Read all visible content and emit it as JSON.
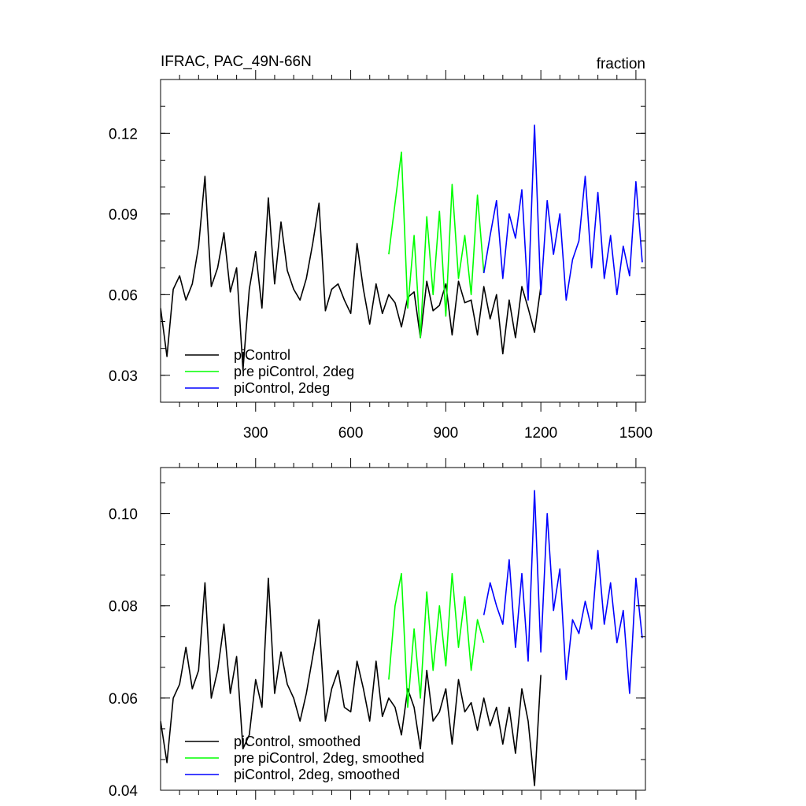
{
  "chart_data": [
    {
      "type": "line",
      "title": "IFRAC, PAC_49N-66N",
      "units_label": "fraction",
      "xlim": [
        0,
        1530
      ],
      "ylim": [
        0.02,
        0.14
      ],
      "x_ticks": [
        300,
        600,
        900,
        1200,
        1500
      ],
      "y_ticks": [
        0.03,
        0.06,
        0.09,
        0.12
      ],
      "x_tick_labels": [
        "300",
        "600",
        "900",
        "1200",
        "1500"
      ],
      "y_tick_labels": [
        "0.03",
        "0.06",
        "0.09",
        "0.12"
      ],
      "grid": false,
      "legend_position": "bottom-left",
      "series": [
        {
          "name": "piControl",
          "color": "#000000",
          "x": [
            0,
            20,
            40,
            60,
            80,
            100,
            120,
            140,
            160,
            180,
            200,
            220,
            240,
            260,
            280,
            300,
            320,
            340,
            360,
            380,
            400,
            420,
            440,
            460,
            480,
            500,
            520,
            540,
            560,
            580,
            600,
            620,
            640,
            660,
            680,
            700,
            720,
            740,
            760,
            780,
            800,
            820,
            840,
            860,
            880,
            900,
            920,
            940,
            960,
            980,
            1000,
            1020,
            1040,
            1060,
            1080,
            1100,
            1120,
            1140,
            1160,
            1180,
            1200
          ],
          "values": [
            0.055,
            0.037,
            0.062,
            0.067,
            0.058,
            0.064,
            0.078,
            0.104,
            0.063,
            0.07,
            0.083,
            0.061,
            0.07,
            0.032,
            0.062,
            0.076,
            0.055,
            0.096,
            0.064,
            0.087,
            0.069,
            0.062,
            0.058,
            0.066,
            0.079,
            0.094,
            0.054,
            0.062,
            0.064,
            0.058,
            0.053,
            0.079,
            0.062,
            0.049,
            0.064,
            0.053,
            0.06,
            0.057,
            0.048,
            0.059,
            0.061,
            0.044,
            0.065,
            0.054,
            0.056,
            0.064,
            0.045,
            0.065,
            0.057,
            0.058,
            0.045,
            0.063,
            0.051,
            0.06,
            0.038,
            0.058,
            0.044,
            0.063,
            0.055,
            0.046,
            0.063
          ]
        },
        {
          "name": "pre piControl, 2deg",
          "color": "#00ff00",
          "x": [
            720,
            740,
            760,
            780,
            800,
            820,
            840,
            860,
            880,
            900,
            920,
            940,
            960,
            980,
            1000,
            1020
          ],
          "values": [
            0.075,
            0.094,
            0.113,
            0.055,
            0.082,
            0.044,
            0.089,
            0.06,
            0.091,
            0.052,
            0.101,
            0.066,
            0.082,
            0.06,
            0.097,
            0.068
          ]
        },
        {
          "name": "piControl, 2deg",
          "color": "#0000ff",
          "x": [
            1020,
            1040,
            1060,
            1080,
            1100,
            1120,
            1140,
            1160,
            1180,
            1200,
            1220,
            1240,
            1260,
            1280,
            1300,
            1320,
            1340,
            1360,
            1380,
            1400,
            1420,
            1440,
            1460,
            1480,
            1500,
            1520
          ],
          "values": [
            0.068,
            0.082,
            0.095,
            0.066,
            0.09,
            0.081,
            0.099,
            0.058,
            0.123,
            0.06,
            0.095,
            0.075,
            0.09,
            0.058,
            0.073,
            0.08,
            0.104,
            0.07,
            0.098,
            0.066,
            0.082,
            0.06,
            0.078,
            0.067,
            0.102,
            0.072
          ]
        }
      ]
    },
    {
      "type": "line",
      "xlim": [
        0,
        1530
      ],
      "ylim": [
        0.04,
        0.11
      ],
      "y_ticks": [
        0.04,
        0.06,
        0.08,
        0.1
      ],
      "y_tick_labels": [
        "0.04",
        "0.06",
        "0.08",
        "0.10"
      ],
      "grid": false,
      "legend_position": "bottom-left",
      "series": [
        {
          "name": "piControl, smoothed",
          "color": "#000000",
          "x": [
            0,
            20,
            40,
            60,
            80,
            100,
            120,
            140,
            160,
            180,
            200,
            220,
            240,
            260,
            280,
            300,
            320,
            340,
            360,
            380,
            400,
            420,
            440,
            460,
            480,
            500,
            520,
            540,
            560,
            580,
            600,
            620,
            640,
            660,
            680,
            700,
            720,
            740,
            760,
            780,
            800,
            820,
            840,
            860,
            880,
            900,
            920,
            940,
            960,
            980,
            1000,
            1020,
            1040,
            1060,
            1080,
            1100,
            1120,
            1140,
            1160,
            1180,
            1200
          ],
          "values": [
            0.055,
            0.046,
            0.06,
            0.063,
            0.071,
            0.062,
            0.066,
            0.085,
            0.06,
            0.066,
            0.076,
            0.061,
            0.069,
            0.049,
            0.052,
            0.064,
            0.058,
            0.086,
            0.061,
            0.07,
            0.063,
            0.06,
            0.055,
            0.061,
            0.069,
            0.077,
            0.055,
            0.062,
            0.066,
            0.058,
            0.057,
            0.068,
            0.062,
            0.055,
            0.068,
            0.056,
            0.06,
            0.058,
            0.052,
            0.062,
            0.058,
            0.049,
            0.066,
            0.055,
            0.057,
            0.062,
            0.05,
            0.064,
            0.057,
            0.059,
            0.053,
            0.06,
            0.054,
            0.058,
            0.05,
            0.058,
            0.048,
            0.062,
            0.055,
            0.041,
            0.065
          ]
        },
        {
          "name": "pre piControl, 2deg, smoothed",
          "color": "#00ff00",
          "x": [
            720,
            740,
            760,
            780,
            800,
            820,
            840,
            860,
            880,
            900,
            920,
            940,
            960,
            980,
            1000,
            1020
          ],
          "values": [
            0.064,
            0.08,
            0.087,
            0.058,
            0.075,
            0.06,
            0.083,
            0.066,
            0.08,
            0.067,
            0.087,
            0.071,
            0.082,
            0.066,
            0.077,
            0.072
          ]
        },
        {
          "name": "piControl, 2deg, smoothed",
          "color": "#0000ff",
          "x": [
            1020,
            1040,
            1060,
            1080,
            1100,
            1120,
            1140,
            1160,
            1180,
            1200,
            1220,
            1240,
            1260,
            1280,
            1300,
            1320,
            1340,
            1360,
            1380,
            1400,
            1420,
            1440,
            1460,
            1480,
            1500,
            1520
          ],
          "values": [
            0.078,
            0.085,
            0.08,
            0.076,
            0.09,
            0.071,
            0.087,
            0.068,
            0.105,
            0.07,
            0.1,
            0.079,
            0.088,
            0.064,
            0.077,
            0.074,
            0.081,
            0.075,
            0.092,
            0.076,
            0.085,
            0.072,
            0.079,
            0.061,
            0.086,
            0.073
          ]
        }
      ]
    }
  ]
}
